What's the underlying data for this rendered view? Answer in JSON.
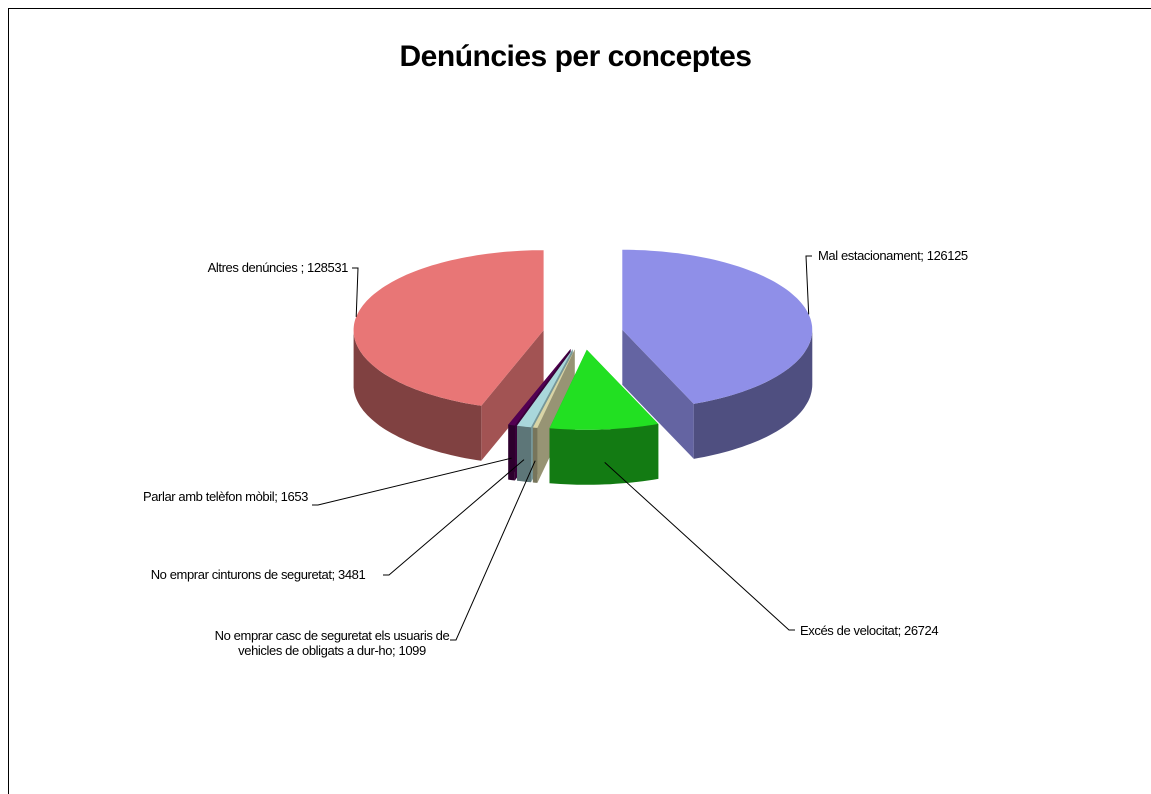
{
  "chart_data": {
    "type": "pie",
    "title": "Denúncies per conceptes",
    "categories": [
      "Mal estacionament;",
      "Excés de velocitat;",
      "No emprar casc de seguretat  els usuaris de vehicles de obligats a dur-ho;",
      "No emprar cinturons de seguretat;",
      "Parlar amb telèfon mòbil;",
      "Altres denúncies ;"
    ],
    "values": [
      126125,
      26724,
      1099,
      3481,
      1653,
      128531
    ],
    "colors": [
      "#8f8fe8",
      "#22e022",
      "#d8d4a6",
      "#a9d7db",
      "#520052",
      "#e87676"
    ]
  }
}
